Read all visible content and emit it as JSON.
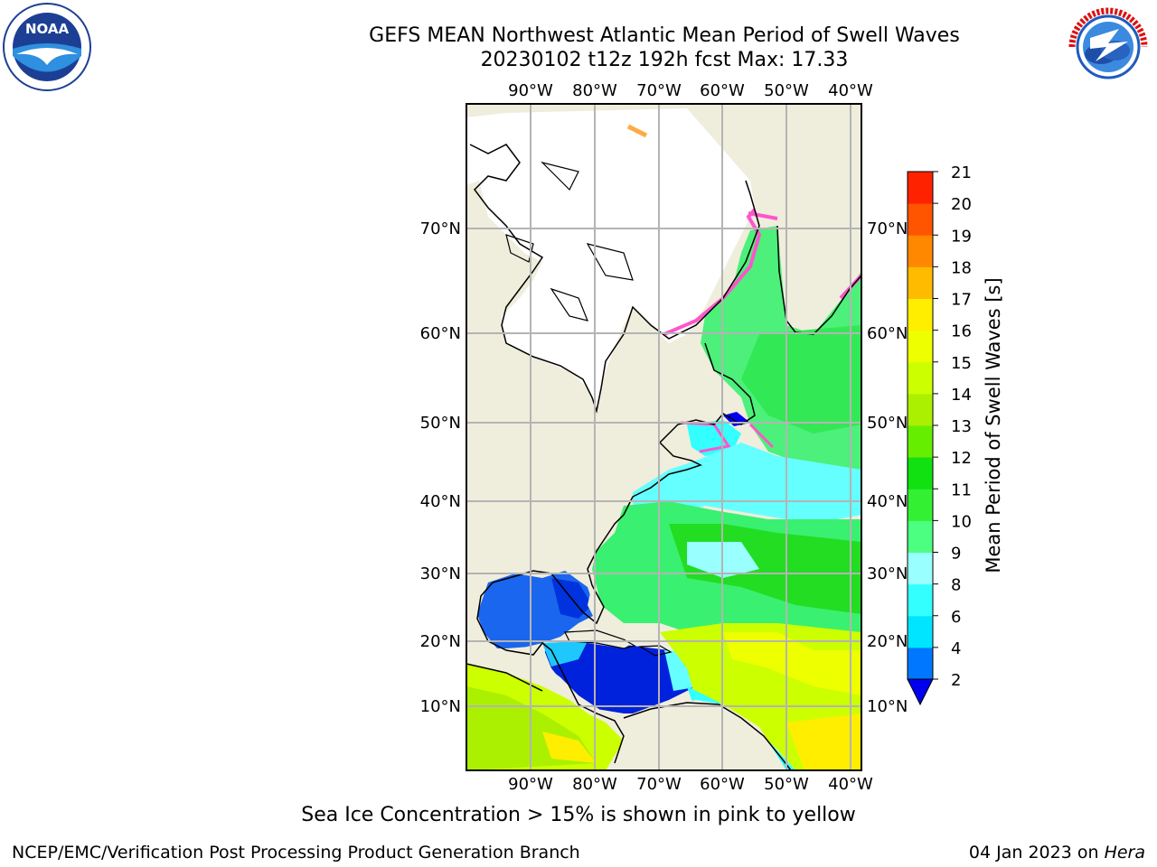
{
  "title": "GEFS MEAN Northwest Atlantic Mean Period of Swell Waves",
  "subtitle": "20230102 t12z 192h fcst   Max: 17.33",
  "lon_ticks": [
    "90°W",
    "80°W",
    "70°W",
    "60°W",
    "50°W",
    "40°W"
  ],
  "lat_ticks": [
    "70°N",
    "60°N",
    "50°N",
    "40°N",
    "30°N",
    "20°N",
    "10°N"
  ],
  "colorbar": {
    "label": "Mean Period of Swell Waves [s]",
    "ticks": [
      "2",
      "4",
      "6",
      "8",
      "9",
      "10",
      "11",
      "12",
      "13",
      "14",
      "15",
      "16",
      "17",
      "18",
      "19",
      "20",
      "21"
    ],
    "colors": [
      "#0077ff",
      "#00e5ff",
      "#33ffff",
      "#99ffff",
      "#4dff80",
      "#33f033",
      "#11e011",
      "#66ee00",
      "#aaf000",
      "#ccff00",
      "#eeff00",
      "#ffee00",
      "#ffbb00",
      "#ff8800",
      "#ff5500",
      "#ff2200"
    ]
  },
  "note": "Sea Ice Concentration > 15% is shown in pink to yellow",
  "footer_left": "NCEP/EMC/Verification Post Processing Product Generation Branch",
  "footer_right_prefix": "04 Jan 2023 on ",
  "footer_right_host": "Hera",
  "logos": {
    "noaa": "NOAA",
    "noaa_ring": "NATIONAL OCEANIC AND ATMOSPHERIC ADMINISTRATION · U.S. DEPARTMENT OF COMMERCE",
    "nws_ring": "NATIONAL WEATHER SERVICE"
  }
}
